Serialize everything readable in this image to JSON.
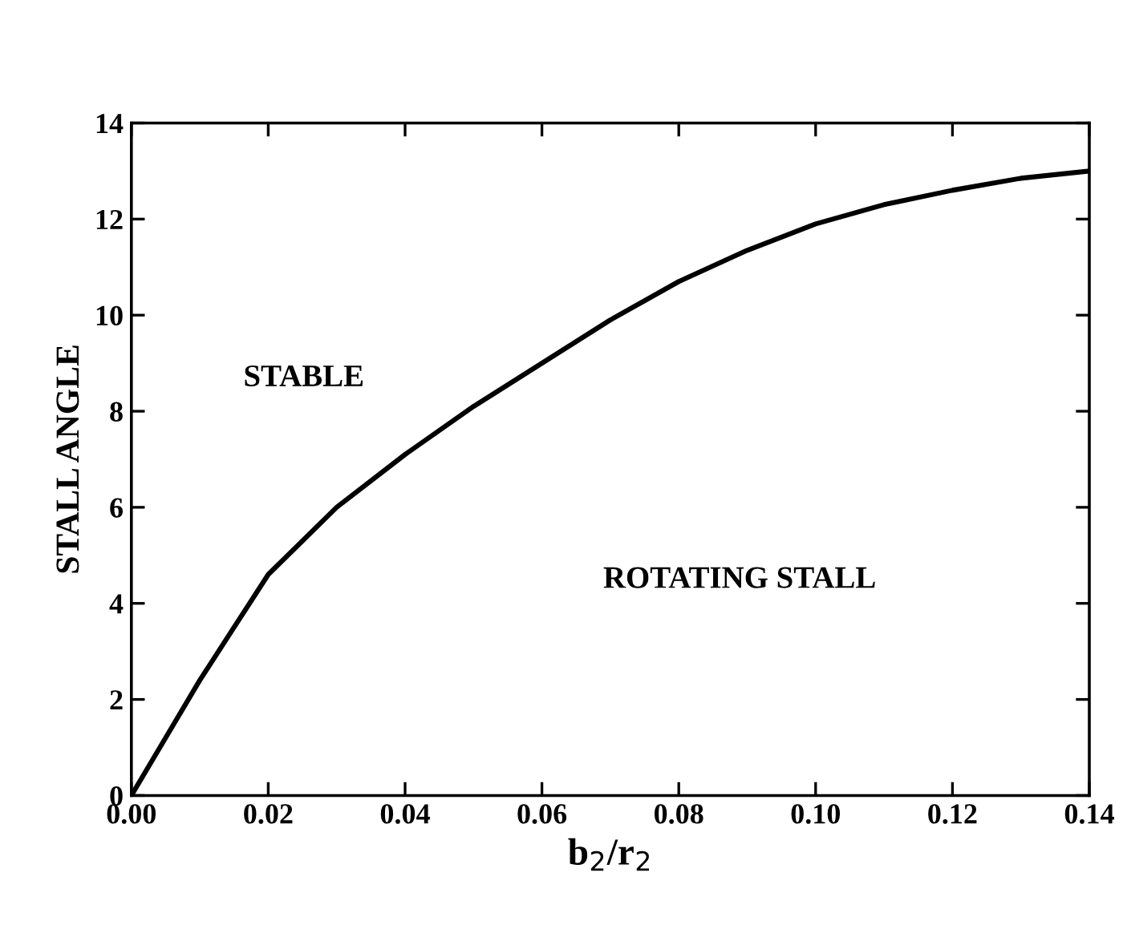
{
  "chart_data": {
    "type": "line",
    "xlabel": "b$_{2}$/r$_{2}$",
    "ylabel": "STALL ANGLE",
    "x": [
      0,
      0.005,
      0.01,
      0.015,
      0.02,
      0.03,
      0.04,
      0.05,
      0.06,
      0.07,
      0.08,
      0.09,
      0.1,
      0.11,
      0.12,
      0.13,
      0.14
    ],
    "series": [
      {
        "color": "#000000",
        "values": [
          0,
          1.2,
          2.4,
          3.5,
          4.6,
          6.0,
          7.1,
          8.1,
          9.0,
          9.9,
          10.7,
          11.35,
          11.9,
          12.3,
          12.6,
          12.85,
          13.0
        ]
      }
    ],
    "xlim": [
      0,
      0.14
    ],
    "xticks": [
      {
        "value": 0,
        "label": "0.00"
      },
      {
        "value": 0.02,
        "label": "0.02"
      },
      {
        "value": 0.04,
        "label": "0.04"
      },
      {
        "value": 0.06,
        "label": "0.06"
      },
      {
        "value": 0.08,
        "label": "0.08"
      },
      {
        "value": 0.1,
        "label": "0.10"
      },
      {
        "value": 0.12,
        "label": "0.12"
      },
      {
        "value": 0.14,
        "label": "0.14"
      }
    ],
    "ylim": [
      0,
      14
    ],
    "yticks": [
      0,
      2,
      4,
      6,
      8,
      10,
      12,
      14
    ],
    "annotations": [
      "STABLE",
      "ROTATING STALL"
    ],
    "grid": false,
    "legend": false,
    "marker": "none",
    "line_style": "solid"
  }
}
